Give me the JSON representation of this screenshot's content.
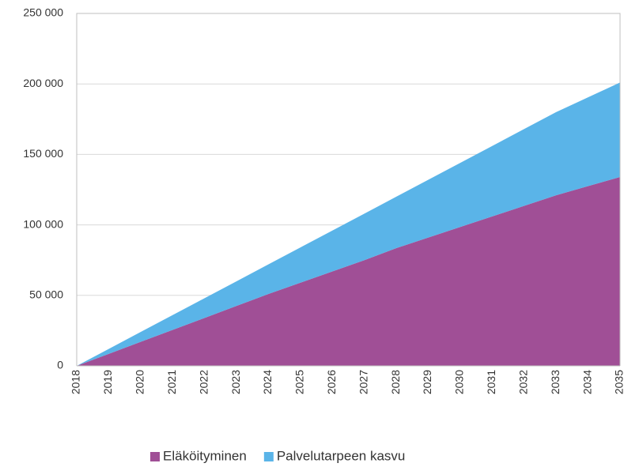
{
  "chart_data": {
    "type": "stacked_area",
    "categories": [
      "2018",
      "2019",
      "2020",
      "2021",
      "2022",
      "2023",
      "2024",
      "2025",
      "2026",
      "2027",
      "2028",
      "2029",
      "2030",
      "2031",
      "2032",
      "2033",
      "2034",
      "2035"
    ],
    "series": [
      {
        "name": "Eläköityminen",
        "color": "#a04f96",
        "values": [
          0,
          8500,
          17000,
          25500,
          34000,
          42500,
          51000,
          59000,
          67000,
          75000,
          83500,
          91000,
          98500,
          106000,
          113500,
          121000,
          127500,
          134000
        ]
      },
      {
        "name": "Palvelutarpeen kasvu",
        "color": "#5ab4e8",
        "values": [
          0,
          3500,
          7000,
          10500,
          14000,
          17500,
          21000,
          25000,
          29000,
          33000,
          36500,
          41000,
          45500,
          50000,
          54500,
          59000,
          63000,
          67000
        ]
      }
    ],
    "ylim": [
      0,
      250000
    ],
    "yticks": [
      0,
      {
        "value": 50000,
        "label": "50 000"
      },
      {
        "value": 100000,
        "label": "100 000"
      },
      {
        "value": 150000,
        "label": "150 000"
      },
      {
        "value": 200000,
        "label": "200 000"
      },
      {
        "value": 250000,
        "label": "250 000"
      }
    ],
    "grid": true,
    "legend": "bottom"
  }
}
